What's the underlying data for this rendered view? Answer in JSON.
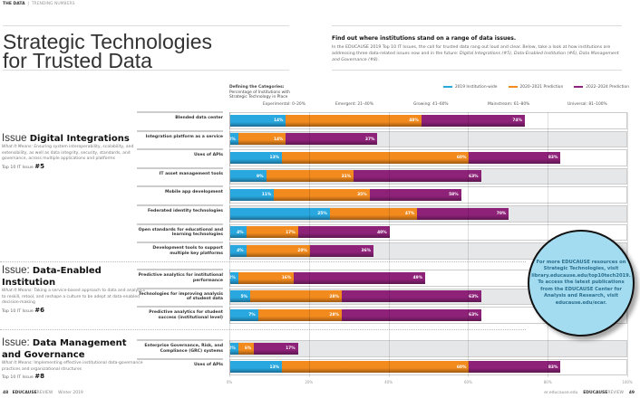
{
  "header": {
    "section": "THE DATA",
    "subsection": "TRENDING NUMBERS"
  },
  "title_line1": "Strategic Technologies",
  "title_line2": "for Trusted Data",
  "intro": {
    "heading": "Find out where institutions stand on a range of data issues.",
    "body": "In the EDUCAUSE 2019 Top 10 IT Issues, the call for trusted data rang out loud and clear. Below, take a look at how institutions are addressing three data-related issues now and in the future: ",
    "body_em": "Digital Integrations (#5), Data-Enabled Institution (#6), Data Management and Governance (#8)."
  },
  "definitions": {
    "heading": "Defining the Categories:",
    "line1": "Percentage of Institutions with",
    "line2": "Strategic Technology in Place"
  },
  "categories": [
    "Experimental: 0–20%",
    "Emergent: 21–40%",
    "Growing: 41–60%",
    "Mainstream: 61–80%",
    "Universal: 81–100%"
  ],
  "issues": [
    {
      "prefix": "Issue ",
      "name": "Digital Integrations",
      "meaning_label": "What It Means:",
      "meaning": " Ensuring system interoperability, scalability, and extensibility, as well as data integrity, security, standards, and governance, across multiple applications and platforms",
      "rank_label": "Top 10 IT Issue ",
      "rank": "#5"
    },
    {
      "prefix": "Issue: ",
      "name": "Data-Enabled Institution",
      "meaning_label": "What It Means:",
      "meaning": " Taking a service-based approach to data and analytics to reskill, retool, and reshape a culture to be adept at data-enabled decision-making",
      "rank_label": "Top 10 IT Issue ",
      "rank": "#6"
    },
    {
      "prefix": "Issue: ",
      "name": "Data Management and Governance",
      "meaning_label": "What It Means:",
      "meaning": " Implementing effective institutional data-governance practices and organizational structures",
      "rank_label": "Top 10 IT Issue ",
      "rank": "#8"
    }
  ],
  "callout": "For more EDUCAUSE resources on Strategic Technologies, visit library.educause.edu/top10tech2019. To access the latest publications from the EDUCAUSE Center for Analysis and Research, visit educause.edu/ecar.",
  "footer": {
    "left_page": "48",
    "left_brand": "EDUCAUSE",
    "left_brand2": "REVIEW",
    "left_issue": "Winter 2019",
    "right_url": "er.educause.edu",
    "right_brand": "EDUCAUSE",
    "right_brand2": "REVIEW",
    "right_page": "49"
  },
  "chart_data": {
    "type": "bar",
    "orientation": "horizontal",
    "stacking": "cumulative-overlay",
    "xlim": [
      0,
      100
    ],
    "xticks": [
      "0%",
      "20%",
      "40%",
      "60%",
      "80%",
      "100%"
    ],
    "grid": true,
    "legend_placement": "top-right",
    "series": [
      {
        "name": "2019 Institution-wide",
        "color": "#29a8e0"
      },
      {
        "name": "2020–2021 Prediction",
        "color": "#f28a1e"
      },
      {
        "name": "2022–2024 Prediction",
        "color": "#8e2279"
      }
    ],
    "groups": [
      {
        "issue": "Digital Integrations",
        "rows": [
          {
            "label": "Blended data center",
            "values": [
              14,
              48,
              74
            ]
          },
          {
            "label": "Integration platform as a service",
            "values": [
              2,
              14,
              37
            ]
          },
          {
            "label": "Uses of APIs",
            "values": [
              13,
              60,
              83
            ]
          },
          {
            "label": "IT asset management tools",
            "values": [
              9,
              31,
              63
            ]
          },
          {
            "label": "Mobile app development",
            "values": [
              11,
              35,
              58
            ]
          },
          {
            "label": "Federated identity technologies",
            "values": [
              25,
              47,
              70
            ]
          },
          {
            "label": "Open standards for educational and learning technologies",
            "values": [
              4,
              17,
              40
            ]
          },
          {
            "label": "Development tools to support multiple key platforms",
            "values": [
              4,
              20,
              36
            ]
          }
        ]
      },
      {
        "issue": "Data-Enabled Institution",
        "rows": [
          {
            "label": "Predictive analytics for institutional performance",
            "values": [
              2,
              16,
              49
            ]
          },
          {
            "label": "Technologies for improving analysis of student data",
            "values": [
              5,
              28,
              63
            ]
          },
          {
            "label": "Predictive analytics for student success (institutional level)",
            "values": [
              7,
              28,
              63
            ]
          }
        ]
      },
      {
        "issue": "Data Management and Governance",
        "rows": [
          {
            "label": "Enterprise Governance, Risk, and Compliance (GRC) systems",
            "values": [
              2,
              6,
              17
            ]
          },
          {
            "label": "Uses of APIs",
            "values": [
              13,
              60,
              83
            ]
          }
        ]
      }
    ]
  }
}
